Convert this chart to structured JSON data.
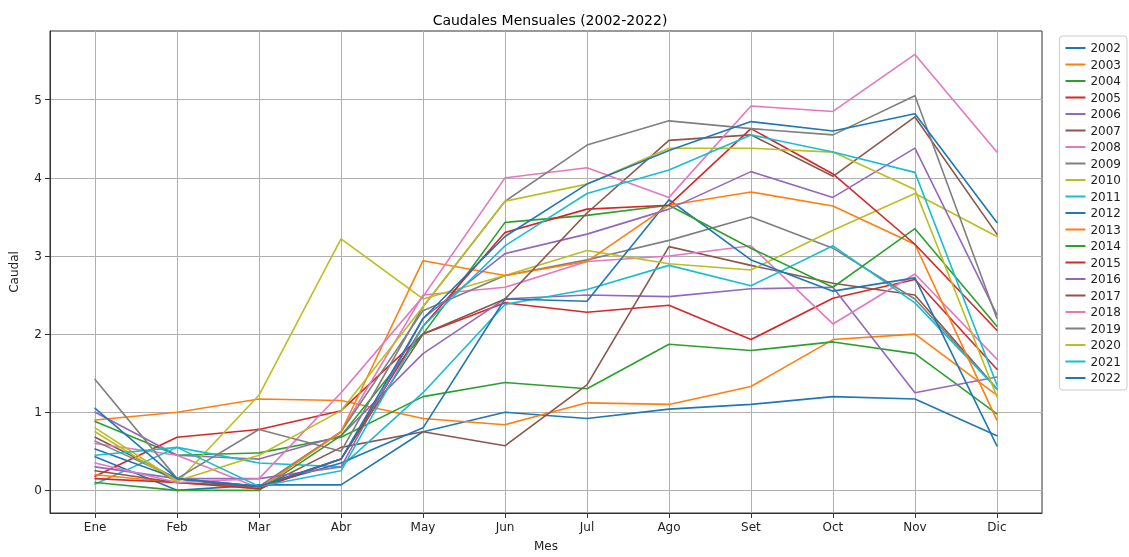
{
  "chart_data": {
    "type": "line",
    "title": "Caudales Mensuales (2002-2022)",
    "xlabel": "Mes",
    "ylabel": "Caudal",
    "categories": [
      "Ene",
      "Feb",
      "Mar",
      "Abr",
      "May",
      "Jun",
      "Jul",
      "Ago",
      "Set",
      "Oct",
      "Nov",
      "Dic"
    ],
    "ylim": [
      -0.29,
      5.88
    ],
    "yticks": [
      0,
      1,
      2,
      3,
      4,
      5
    ],
    "grid": true,
    "legend": "right",
    "marker": "none",
    "line_style": "solid",
    "series": [
      {
        "name": "2002",
        "color": "#1f77b4",
        "values": [
          0.43,
          0.0,
          0.07,
          0.07,
          0.75,
          1.0,
          0.92,
          1.04,
          1.1,
          1.2,
          1.17,
          0.7
        ]
      },
      {
        "name": "2003",
        "color": "#ff7f0e",
        "values": [
          0.9,
          1.0,
          1.17,
          1.15,
          0.92,
          0.84,
          1.12,
          1.1,
          1.33,
          1.93,
          2.0,
          1.22
        ]
      },
      {
        "name": "2004",
        "color": "#2ca02c",
        "values": [
          0.88,
          0.45,
          0.48,
          0.68,
          1.2,
          1.38,
          1.3,
          1.87,
          1.79,
          1.9,
          1.75,
          0.98
        ]
      },
      {
        "name": "2005",
        "color": "#d62728",
        "values": [
          0.18,
          0.68,
          0.78,
          1.02,
          2.0,
          2.4,
          2.28,
          2.37,
          1.93,
          2.46,
          2.7,
          1.55
        ]
      },
      {
        "name": "2006",
        "color": "#9467bd",
        "values": [
          1.0,
          0.45,
          0.4,
          0.7,
          1.75,
          2.45,
          2.5,
          2.48,
          2.58,
          2.6,
          1.25,
          1.45
        ]
      },
      {
        "name": "2007",
        "color": "#8c564b",
        "values": [
          0.68,
          0.15,
          0.02,
          0.55,
          0.75,
          0.57,
          1.35,
          3.12,
          2.88,
          2.65,
          2.5,
          1.3
        ]
      },
      {
        "name": "2008",
        "color": "#e377c2",
        "values": [
          0.6,
          0.45,
          0.03,
          0.75,
          2.5,
          2.6,
          2.93,
          3.0,
          3.13,
          2.13,
          2.77,
          1.68
        ]
      },
      {
        "name": "2009",
        "color": "#7f7f7f",
        "values": [
          0.63,
          0.15,
          0.05,
          0.75,
          2.3,
          2.75,
          2.95,
          3.2,
          3.5,
          3.1,
          2.45,
          1.3
        ]
      },
      {
        "name": "2010",
        "color": "#bcbd22",
        "values": [
          0.75,
          0.1,
          1.22,
          3.22,
          2.45,
          2.75,
          3.07,
          2.9,
          2.82,
          3.33,
          3.8,
          3.25
        ]
      },
      {
        "name": "2011",
        "color": "#17becf",
        "values": [
          0.08,
          0.55,
          0.35,
          0.3,
          1.25,
          2.38,
          2.57,
          2.88,
          2.62,
          3.13,
          2.4,
          1.3
        ]
      },
      {
        "name": "2012",
        "color": "#1f77b4",
        "values": [
          0.53,
          0.15,
          0.05,
          0.35,
          0.8,
          2.45,
          2.42,
          3.72,
          2.95,
          2.55,
          2.72,
          0.57
        ]
      },
      {
        "name": "2013",
        "color": "#ff7f0e",
        "values": [
          0.2,
          0.1,
          0.02,
          0.75,
          2.94,
          2.75,
          2.93,
          3.65,
          3.82,
          3.64,
          3.15,
          0.9
        ]
      },
      {
        "name": "2014",
        "color": "#2ca02c",
        "values": [
          0.1,
          0.0,
          0.0,
          0.7,
          2.0,
          3.43,
          3.52,
          3.65,
          3.1,
          2.6,
          3.35,
          2.1
        ]
      },
      {
        "name": "2015",
        "color": "#d62728",
        "values": [
          0.15,
          0.1,
          0.02,
          0.4,
          2.1,
          3.3,
          3.6,
          3.65,
          4.63,
          4.05,
          3.15,
          2.05
        ]
      },
      {
        "name": "2016",
        "color": "#9467bd",
        "values": [
          0.3,
          0.15,
          0.15,
          0.3,
          2.2,
          3.03,
          3.28,
          3.6,
          4.08,
          3.75,
          4.38,
          2.25
        ]
      },
      {
        "name": "2017",
        "color": "#8c564b",
        "values": [
          0.25,
          0.1,
          0.05,
          0.4,
          2.0,
          2.45,
          3.55,
          4.48,
          4.55,
          4.02,
          4.78,
          3.28
        ]
      },
      {
        "name": "2018",
        "color": "#e377c2",
        "values": [
          0.35,
          0.1,
          0.15,
          1.25,
          2.48,
          4.0,
          4.13,
          3.75,
          4.92,
          4.85,
          5.58,
          4.33
        ]
      },
      {
        "name": "2019",
        "color": "#7f7f7f",
        "values": [
          1.42,
          0.15,
          0.78,
          0.5,
          2.35,
          3.7,
          4.42,
          4.73,
          4.63,
          4.55,
          5.05,
          2.2
        ]
      },
      {
        "name": "2020",
        "color": "#bcbd22",
        "values": [
          0.8,
          0.12,
          0.45,
          1.02,
          2.35,
          3.7,
          3.92,
          4.38,
          4.38,
          4.33,
          3.85,
          1.2
        ]
      },
      {
        "name": "2021",
        "color": "#17becf",
        "values": [
          0.45,
          0.55,
          0.05,
          0.25,
          2.1,
          3.13,
          3.8,
          4.1,
          4.55,
          4.33,
          4.07,
          1.35
        ]
      },
      {
        "name": "2022",
        "color": "#1f77b4",
        "values": [
          1.05,
          0.15,
          0.05,
          0.4,
          2.2,
          3.25,
          3.92,
          4.35,
          4.72,
          4.6,
          4.82,
          3.43
        ]
      }
    ]
  }
}
